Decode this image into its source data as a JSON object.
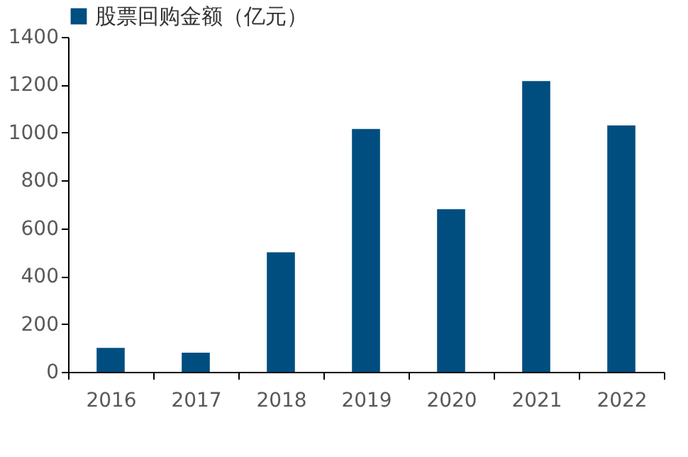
{
  "chart_data": {
    "type": "bar",
    "categories": [
      "2016",
      "2017",
      "2018",
      "2019",
      "2020",
      "2021",
      "2022"
    ],
    "series": [
      {
        "name": "股票回购金额（亿元）",
        "color": "#004e80",
        "values": [
          100,
          80,
          500,
          1015,
          680,
          1215,
          1030
        ]
      }
    ],
    "ylim": [
      0,
      1400
    ],
    "yticks": [
      0,
      200,
      400,
      600,
      800,
      1000,
      1200,
      1400
    ],
    "grid": false,
    "legend": "top"
  }
}
